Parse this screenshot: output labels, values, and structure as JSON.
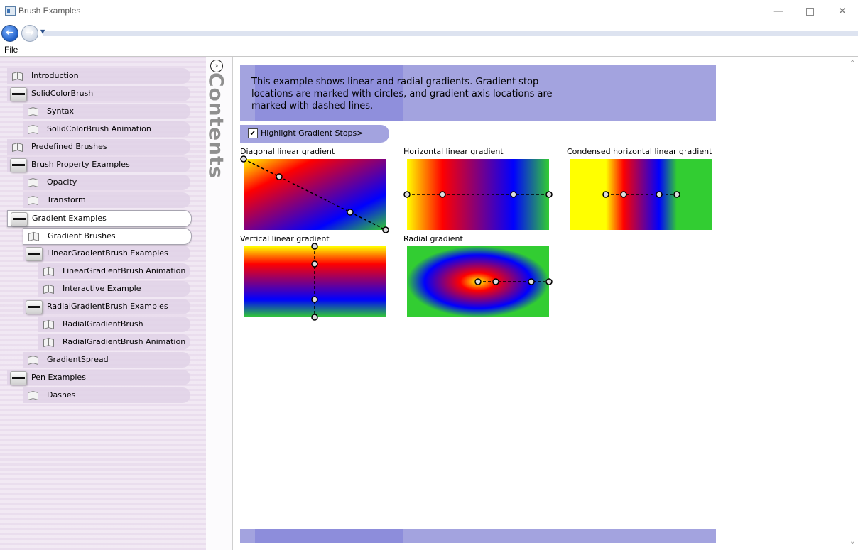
{
  "window": {
    "title": "Brush Examples"
  },
  "menu": {
    "file": "File"
  },
  "sidebar": {
    "contents_label": "Contents",
    "items": [
      {
        "label": "Introduction",
        "type": "page"
      },
      {
        "label": "SolidColorBrush",
        "type": "folder"
      },
      {
        "label": "Syntax",
        "type": "page"
      },
      {
        "label": "SolidColorBrush Animation",
        "type": "page"
      },
      {
        "label": "Predefined Brushes",
        "type": "page"
      },
      {
        "label": "Brush Property Examples",
        "type": "folder"
      },
      {
        "label": "Opacity",
        "type": "page"
      },
      {
        "label": "Transform",
        "type": "page"
      },
      {
        "label": "Gradient Examples",
        "type": "folder",
        "selected": true
      },
      {
        "label": "Gradient Brushes",
        "type": "page",
        "selected": true
      },
      {
        "label": "LinearGradientBrush Examples",
        "type": "folder"
      },
      {
        "label": "LinearGradientBrush Animation",
        "type": "page"
      },
      {
        "label": "Interactive Example",
        "type": "page"
      },
      {
        "label": "RadialGradientBrush Examples",
        "type": "folder"
      },
      {
        "label": "RadialGradientBrush",
        "type": "page"
      },
      {
        "label": "RadialGradientBrush Animation",
        "type": "page"
      },
      {
        "label": "GradientSpread",
        "type": "page"
      },
      {
        "label": "Pen Examples",
        "type": "folder"
      },
      {
        "label": "Dashes",
        "type": "page"
      }
    ]
  },
  "main": {
    "description": "This example shows linear and radial gradients. Gradient stop locations are marked with circles, and gradient axis locations are marked with dashed lines.",
    "highlight_button": "Highlight Gradient Stops>",
    "highlight_checked": true,
    "gradients": {
      "diagonal": "Diagonal linear gradient",
      "horizontal": "Horizontal linear gradient",
      "condensed": "Condensed horizontal linear gradient",
      "vertical": "Vertical linear gradient",
      "radial": "Radial gradient"
    }
  },
  "colors": {
    "accent": "#a3a3df",
    "yellow": "#ffff00",
    "red": "#ff0000",
    "blue": "#0000ff",
    "green": "#32cd32"
  }
}
